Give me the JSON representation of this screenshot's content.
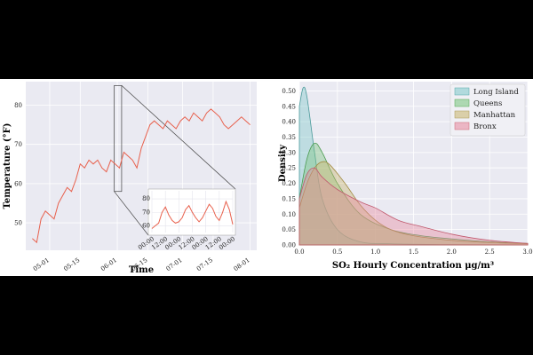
{
  "chart_data": [
    {
      "type": "line",
      "xlabel": "Time",
      "ylabel": "Temperature (°F)",
      "xticks": [
        "05-01",
        "05-15",
        "06-01",
        "06-15",
        "07-01",
        "07-15",
        "08-01"
      ],
      "yticks": [
        50,
        60,
        70,
        80
      ],
      "xlim": [
        "2021-04-20",
        "2021-08-04"
      ],
      "ylim": [
        43,
        86
      ],
      "grid": true,
      "series": [
        {
          "color": "#e8604c",
          "x": [
            "04-23",
            "04-25",
            "04-27",
            "04-29",
            "05-01",
            "05-03",
            "05-05",
            "05-07",
            "05-09",
            "05-11",
            "05-13",
            "05-15",
            "05-17",
            "05-19",
            "05-21",
            "05-23",
            "05-25",
            "05-27",
            "05-29",
            "05-31",
            "06-02",
            "06-04",
            "06-06",
            "06-08",
            "06-10",
            "06-12",
            "06-14",
            "06-16",
            "06-18",
            "06-20",
            "06-22",
            "06-24",
            "06-26",
            "06-28",
            "06-30",
            "07-02",
            "07-04",
            "07-06",
            "07-08",
            "07-10",
            "07-12",
            "07-14",
            "07-16",
            "07-18",
            "07-20",
            "07-22",
            "07-24",
            "07-26",
            "07-28",
            "07-30",
            "08-01"
          ],
          "y": [
            46,
            45,
            51,
            53,
            52,
            51,
            55,
            57,
            59,
            58,
            61,
            65,
            64,
            66,
            65,
            66,
            64,
            63,
            66,
            65,
            64,
            68,
            67,
            66,
            64,
            69,
            72,
            75,
            76,
            75,
            74,
            76,
            75,
            74,
            76,
            77,
            76,
            78,
            77,
            76,
            78,
            79,
            78,
            77,
            75,
            74,
            75,
            76,
            77,
            76,
            75
          ]
        }
      ],
      "inset": {
        "xticks": [
          "00:00",
          "12:00",
          "00:00",
          "12:00",
          "00:00",
          "12:00",
          "00:00"
        ],
        "yticks": [
          60,
          70,
          80
        ],
        "ylim": [
          55,
          86
        ],
        "series": [
          {
            "color": "#e8604c",
            "x": [
              0,
              3,
              6,
              9,
              12,
              15,
              18,
              21,
              24,
              27,
              30,
              33,
              36,
              39,
              42,
              45,
              48,
              51,
              54,
              57,
              60,
              63,
              66,
              69,
              72
            ],
            "y": [
              58,
              60,
              62,
              70,
              74,
              68,
              64,
              62,
              63,
              66,
              72,
              75,
              70,
              66,
              63,
              66,
              71,
              76,
              73,
              67,
              64,
              70,
              78,
              72,
              61
            ]
          }
        ]
      }
    },
    {
      "type": "area",
      "xlabel": "SO₂ Hourly Concentration μg/m³",
      "ylabel": "Density",
      "xticks": [
        "0.0",
        "0.5",
        "1.0",
        "1.5",
        "2.0",
        "2.5",
        "3.0"
      ],
      "yticks": [
        "0.00",
        "0.05",
        "0.10",
        "0.15",
        "0.20",
        "0.25",
        "0.30",
        "0.35",
        "0.40",
        "0.45",
        "0.50"
      ],
      "xlim": [
        0,
        3
      ],
      "ylim": [
        0,
        0.53
      ],
      "grid": true,
      "legend_position": "top-right",
      "series": [
        {
          "name": "Long Island",
          "color": "#7ec8c8",
          "peak_x": 0.05,
          "peak_y": 0.51,
          "x": [
            0,
            0.05,
            0.1,
            0.2,
            0.3,
            0.5,
            0.8,
            1.2,
            2.0,
            3.0
          ],
          "y": [
            0.45,
            0.51,
            0.48,
            0.3,
            0.15,
            0.05,
            0.01,
            0.004,
            0.001,
            0
          ]
        },
        {
          "name": "Queens",
          "color": "#77c47a",
          "peak_x": 0.2,
          "peak_y": 0.33,
          "x": [
            0,
            0.1,
            0.2,
            0.3,
            0.5,
            0.8,
            1.2,
            1.6,
            2.0,
            2.5,
            3.0
          ],
          "y": [
            0.15,
            0.28,
            0.33,
            0.3,
            0.2,
            0.1,
            0.05,
            0.03,
            0.02,
            0.01,
            0.005
          ]
        },
        {
          "name": "Manhattan",
          "color": "#c8b46a",
          "peak_x": 0.3,
          "peak_y": 0.27,
          "x": [
            0,
            0.1,
            0.2,
            0.3,
            0.4,
            0.6,
            0.8,
            1.0,
            1.2,
            1.5,
            2.0,
            2.5,
            3.0
          ],
          "y": [
            0.12,
            0.2,
            0.25,
            0.27,
            0.26,
            0.2,
            0.13,
            0.08,
            0.05,
            0.03,
            0.015,
            0.008,
            0.004
          ]
        },
        {
          "name": "Bronx",
          "color": "#e8879a",
          "peak_x": 0.2,
          "peak_y": 0.25,
          "x": [
            0,
            0.1,
            0.2,
            0.3,
            0.5,
            0.8,
            1.0,
            1.3,
            1.6,
            2.0,
            2.5,
            3.0
          ],
          "y": [
            0.15,
            0.23,
            0.25,
            0.22,
            0.18,
            0.14,
            0.12,
            0.08,
            0.06,
            0.035,
            0.015,
            0.005
          ]
        }
      ]
    }
  ]
}
